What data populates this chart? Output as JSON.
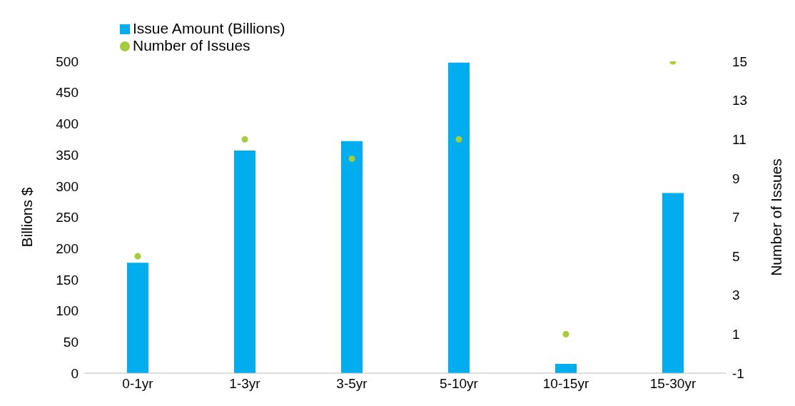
{
  "chart_data": {
    "type": "bar",
    "categories": [
      "0-1yr",
      "1-3yr",
      "3-5yr",
      "5-10yr",
      "10-15yr",
      "15-30yr"
    ],
    "series": [
      {
        "name": "Issue Amount (Billions)",
        "color": "#00aeef",
        "values": [
          177,
          357,
          372,
          498,
          15,
          289
        ]
      },
      {
        "name": "Number of Issues",
        "type": "scatter",
        "axis": "y2",
        "color": "#a5cd39",
        "values": [
          5,
          11,
          10,
          11,
          1,
          15
        ]
      }
    ],
    "ylabel": "Billions $",
    "y2label": "Number of Issues",
    "ylim": [
      0,
      500
    ],
    "yticks": [
      0,
      50,
      100,
      150,
      200,
      250,
      300,
      350,
      400,
      450,
      500
    ],
    "y2lim": [
      -1,
      15
    ],
    "y2ticks": [
      -1,
      1,
      3,
      5,
      7,
      9,
      11,
      13,
      15
    ],
    "legend": "top left",
    "grid": false,
    "marker": "circle"
  }
}
